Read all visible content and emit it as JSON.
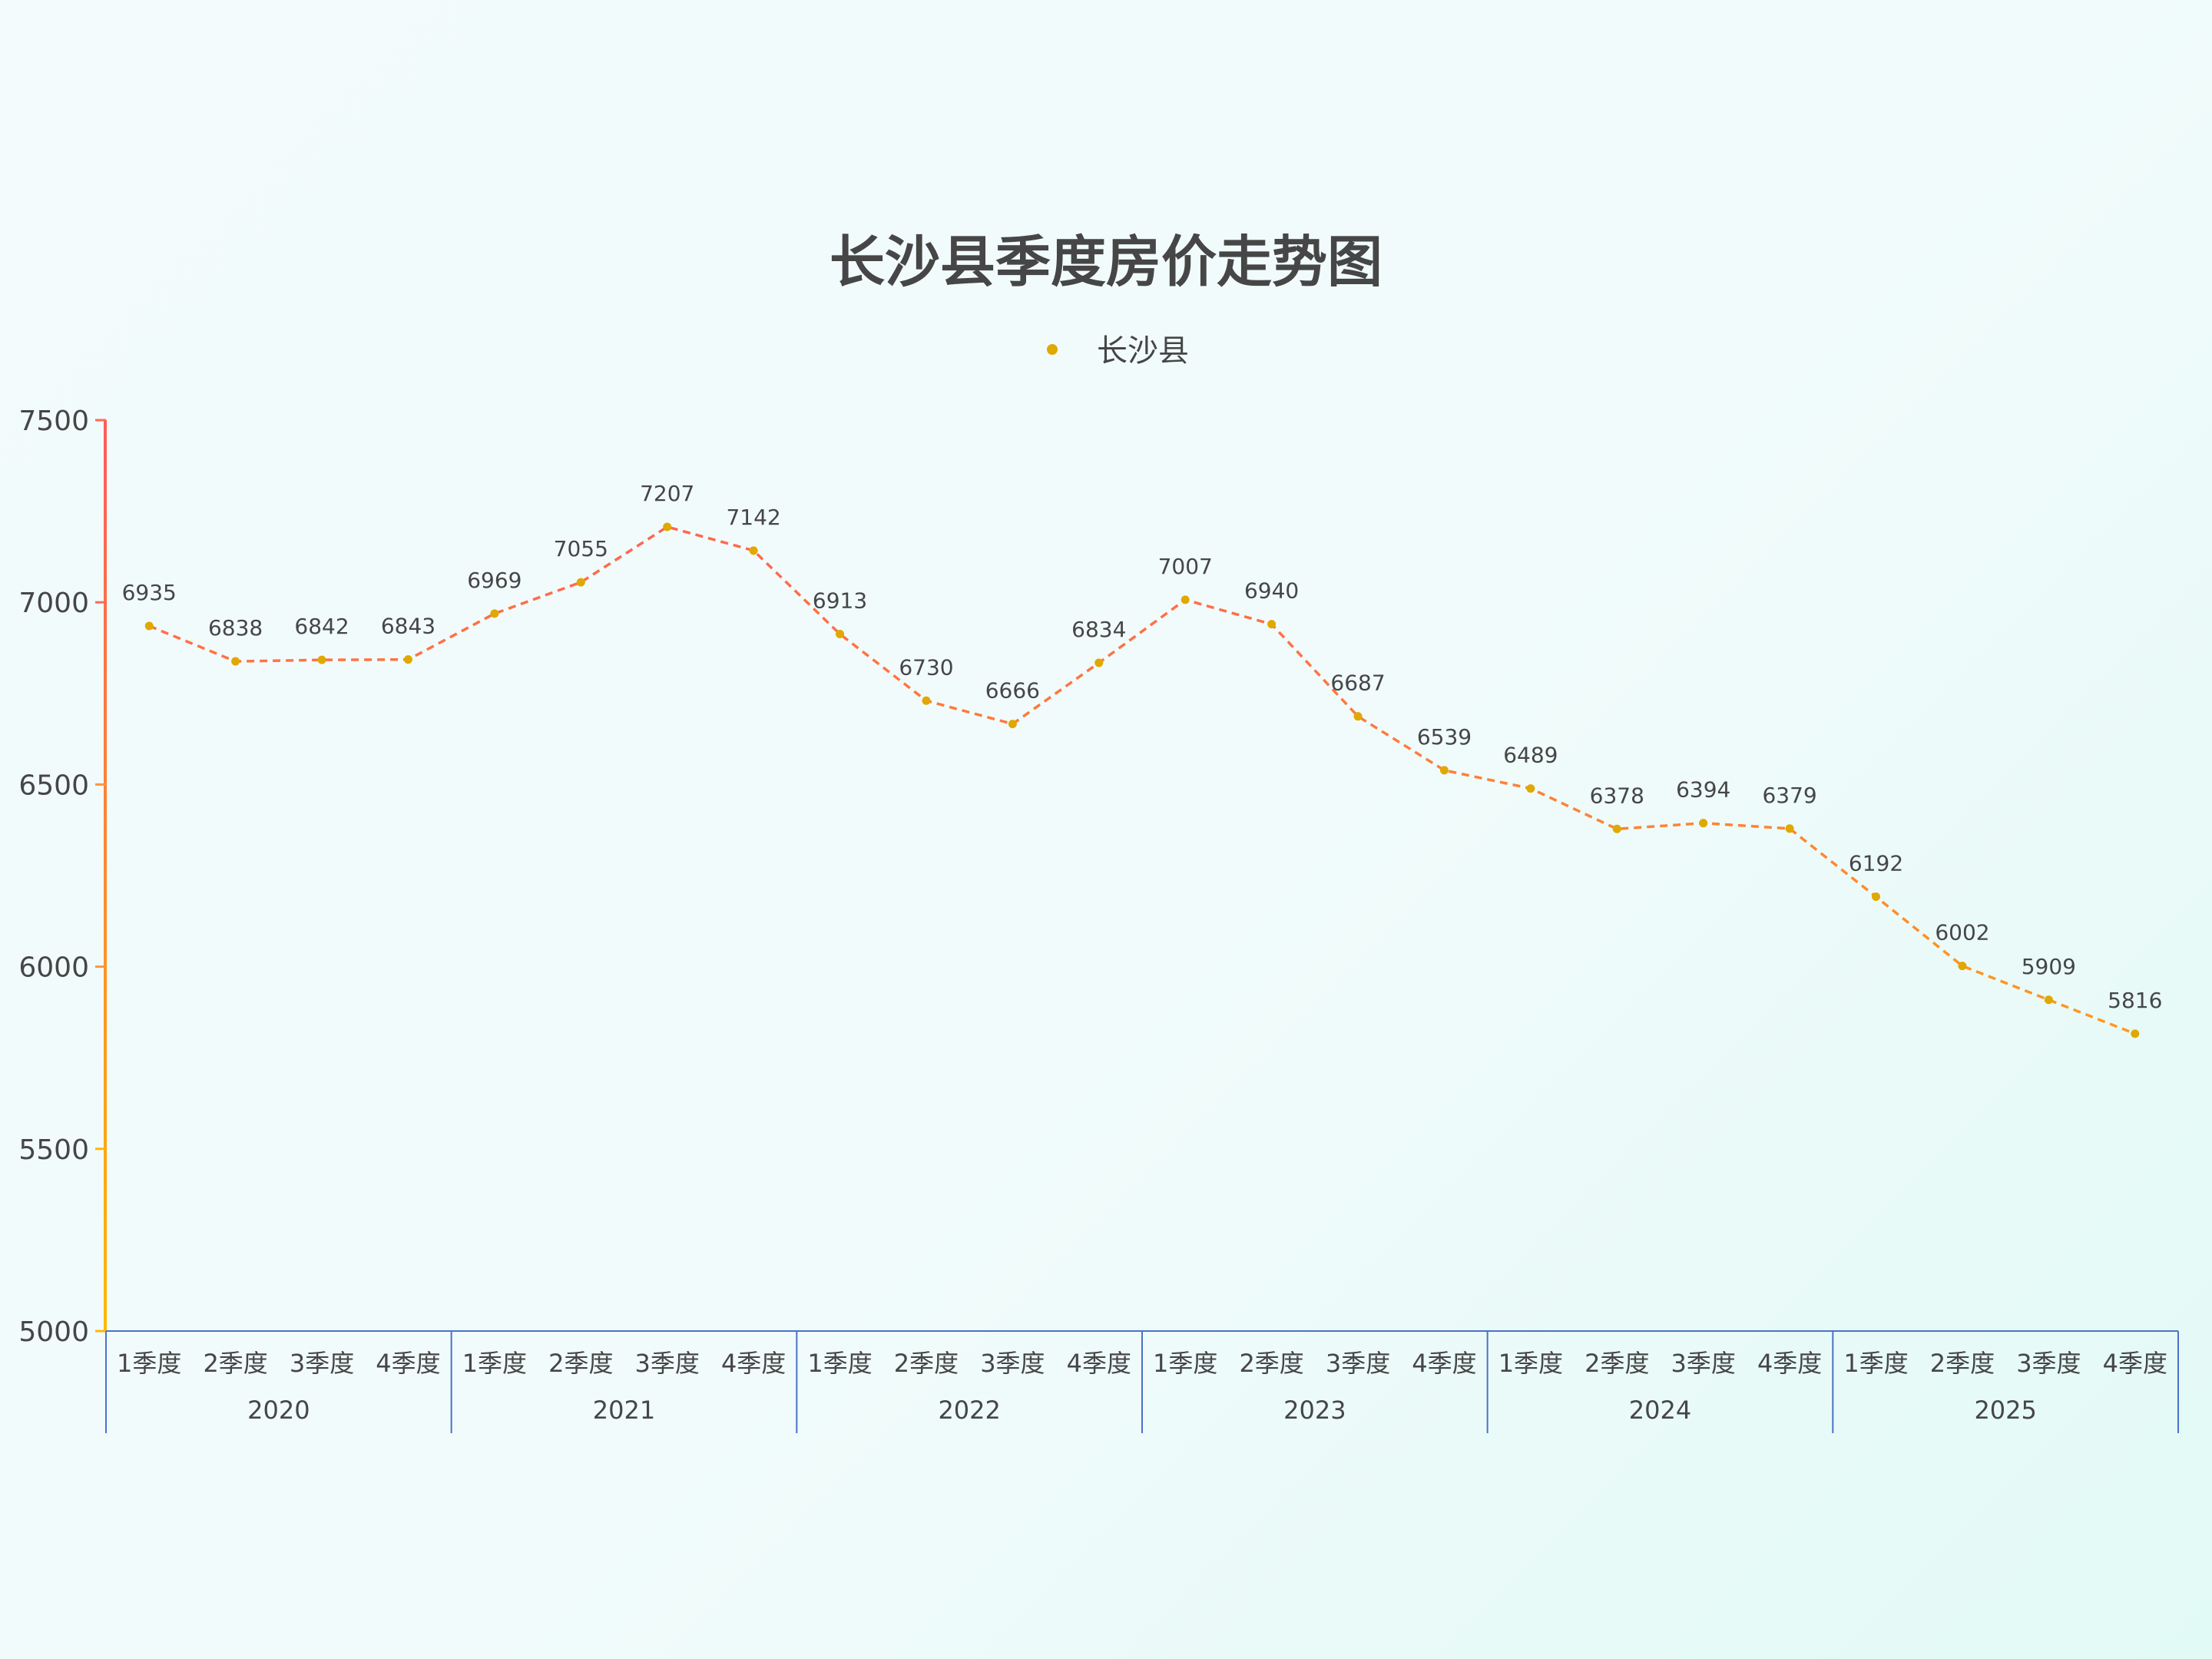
{
  "chart_data": {
    "type": "line",
    "title": "长沙县季度房价走势图",
    "xlabel": "",
    "ylabel": "",
    "ylim": [
      5000,
      7500
    ],
    "yticks": [
      5000,
      5500,
      6000,
      6500,
      7000,
      7500
    ],
    "grid": false,
    "legend_position": "top-center",
    "x_groups": [
      {
        "label": "2020",
        "categories": [
          "1季度",
          "2季度",
          "3季度",
          "4季度"
        ]
      },
      {
        "label": "2021",
        "categories": [
          "1季度",
          "2季度",
          "3季度",
          "4季度"
        ]
      },
      {
        "label": "2022",
        "categories": [
          "1季度",
          "2季度",
          "3季度",
          "4季度"
        ]
      },
      {
        "label": "2023",
        "categories": [
          "1季度",
          "2季度",
          "3季度",
          "4季度"
        ]
      },
      {
        "label": "2024",
        "categories": [
          "1季度",
          "2季度",
          "3季度",
          "4季度"
        ]
      },
      {
        "label": "2025",
        "categories": [
          "1季度",
          "2季度",
          "3季度",
          "4季度"
        ]
      }
    ],
    "categories": [
      "2020 1季度",
      "2020 2季度",
      "2020 3季度",
      "2020 4季度",
      "2021 1季度",
      "2021 2季度",
      "2021 3季度",
      "2021 4季度",
      "2022 1季度",
      "2022 2季度",
      "2022 3季度",
      "2022 4季度",
      "2023 1季度",
      "2023 2季度",
      "2023 3季度",
      "2023 4季度",
      "2024 1季度",
      "2024 2季度",
      "2024 3季度",
      "2024 4季度",
      "2025 1季度",
      "2025 2季度",
      "2025 3季度",
      "2025 4季度"
    ],
    "series": [
      {
        "name": "长沙县",
        "values": [
          6935,
          6838,
          6842,
          6843,
          6969,
          7055,
          7207,
          7142,
          6913,
          6730,
          6666,
          6834,
          7007,
          6940,
          6687,
          6539,
          6489,
          6378,
          6394,
          6379,
          6192,
          6002,
          5909,
          5816
        ],
        "line_style": "dashed",
        "marker_color": "#e0a800"
      }
    ]
  },
  "colors": {
    "title": "#464646",
    "text": "#464646",
    "axis_top": "#ff5b5b",
    "axis_bottom": "#ffb800",
    "x_axis": "#4a72c8",
    "line_high": "#ff5b5b",
    "line_low": "#ffb800",
    "marker": "#e0a800"
  },
  "legend": {
    "label": "长沙县"
  }
}
